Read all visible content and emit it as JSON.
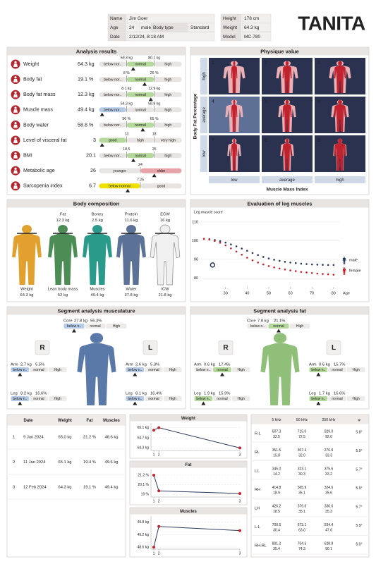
{
  "header": {
    "left_rows": [
      [
        "Name",
        "Jim Goer"
      ],
      [
        "Age",
        "24",
        "male",
        "Body type",
        "Standard"
      ],
      [
        "Date",
        "2/12/24, 8:18 AM"
      ]
    ],
    "right_rows": [
      [
        "Height",
        "178 cm"
      ],
      [
        "Weight",
        "64.3 kg"
      ],
      [
        "Model",
        "MC-780"
      ]
    ],
    "logo": "TANITA"
  },
  "analysis": {
    "title": "Analysis results",
    "rows": [
      {
        "name": "Weight",
        "value": 64.3,
        "unit": "kg",
        "ticks": [
          {
            "value": 59.3,
            "label": "59.3 kg"
          },
          {
            "value": 80.1,
            "label": "80.1 kg"
          }
        ],
        "segments": [
          "below nor..",
          "normal",
          "high"
        ],
        "active": 1,
        "active_color": "#b5d89c"
      },
      {
        "name": "Body fat",
        "value": 19.1,
        "unit": "%",
        "ticks": [
          {
            "value": 8,
            "label": "8 %"
          },
          {
            "value": 25,
            "label": "25 %"
          }
        ],
        "segments": [
          "below nor..",
          "normal",
          "high"
        ],
        "active": 1,
        "active_color": "#b5d89c"
      },
      {
        "name": "Body fat mass",
        "value": 12.3,
        "unit": "kg",
        "ticks": [
          {
            "value": 8.1,
            "label": "8.1 kg"
          },
          {
            "value": 12.9,
            "label": "12.9 kg"
          }
        ],
        "segments": [
          "below nor..",
          "normal",
          "high"
        ],
        "active": 1,
        "active_color": "#b5d89c"
      },
      {
        "name": "Muscle mass",
        "value": 49.4,
        "unit": "kg",
        "ticks": [
          {
            "value": 54.3,
            "label": "54.3 kg"
          },
          {
            "value": 58.8,
            "label": "58.8 kg"
          }
        ],
        "segments": [
          "below nor..",
          "normal",
          "high"
        ],
        "active": 0,
        "active_color": "#b6cbe6"
      },
      {
        "name": "Body water",
        "value": 58.8,
        "unit": "%",
        "ticks": [
          {
            "value": 50,
            "label": "50 %"
          },
          {
            "value": 65,
            "label": "65 %"
          }
        ],
        "segments": [
          "below nor..",
          "normal",
          "high"
        ],
        "active": 1,
        "active_color": "#b5d89c"
      },
      {
        "name": "Level of visceral fat",
        "value": 3,
        "ticks": [
          13,
          18
        ],
        "segments": [
          "good",
          "high",
          "very high"
        ],
        "active": 0,
        "active_color": "#b5d89c"
      },
      {
        "name": "BMI",
        "value": 20.1,
        "ticks": [
          18.5,
          25
        ],
        "segments": [
          "below nor..",
          "normal",
          "high"
        ],
        "active": 1,
        "active_color": "#b5d89c"
      },
      {
        "name": "Metabolic age",
        "value": 26,
        "ticks": [
          24
        ],
        "segments": [
          "younger",
          "older"
        ],
        "active": 1,
        "active_color": "#e6a3a8"
      },
      {
        "name": "Sarcopenia index",
        "value": 6.7,
        "ticks": [
          7.25
        ],
        "segments": [
          "below normal",
          "good"
        ],
        "active": 0,
        "active_color": "#f0e000"
      }
    ]
  },
  "physique": {
    "title": "Physique value",
    "y_label": "Body Fat Percentage",
    "y_levels": [
      "high",
      "average",
      "low"
    ],
    "x_label": "Muscle Mass Index",
    "x_levels": [
      "low",
      "average",
      "high"
    ],
    "cells": [
      1,
      2,
      3,
      4,
      5,
      6,
      7,
      8,
      9
    ],
    "selected_index": 3
  },
  "body_composition": {
    "title": "Body composition",
    "top": [
      {
        "name": "Fat",
        "value": "12.3 kg"
      },
      {
        "name": "Bones",
        "value": "2.5 kg"
      },
      {
        "name": "Protein",
        "value": "11.6 kg"
      },
      {
        "name": "ECW",
        "value": "16 kg"
      }
    ],
    "bottom": [
      {
        "name": "Weight",
        "value": "64.3 kg"
      },
      {
        "name": "Lean body mass",
        "value": "52 kg"
      },
      {
        "name": "Muscles",
        "value": "49.4 kg"
      },
      {
        "name": "Water",
        "value": "37.8 kg"
      },
      {
        "name": "ICW",
        "value": "21.8 kg"
      }
    ]
  },
  "leg_muscles": {
    "type": "scatter",
    "title": "Evaluation of leg muscles",
    "y_label": "Leg muscle score",
    "x_label": "Age",
    "xlim": [
      18,
      83
    ],
    "ylim": [
      76,
      113
    ],
    "xticks": [
      30,
      40,
      50,
      60,
      70,
      80
    ],
    "yticks": [
      80,
      90,
      100,
      110
    ],
    "series": [
      {
        "name": "male",
        "color": "#2b3a5a",
        "x": [
          20,
          22.5,
          25,
          27.5,
          30,
          32.5,
          35,
          37.5,
          40,
          42.5,
          45,
          47.5,
          50,
          52.5,
          55,
          57.5,
          60,
          62.5,
          65,
          67.5,
          70,
          72.5,
          75,
          77.5,
          80
        ],
        "values": [
          101,
          100.8,
          100.4,
          99.8,
          99,
          98,
          97,
          95.8,
          94.6,
          93.4,
          92.3,
          91.3,
          90.5,
          89.8,
          89.2,
          88.7,
          88.3,
          88,
          87.7,
          87.5,
          87.3,
          87.2,
          87.1,
          87,
          87
        ]
      },
      {
        "name": "female",
        "color": "#c0232e",
        "x": [
          20,
          22.5,
          25,
          27.5,
          30,
          32.5,
          35,
          37.5,
          40,
          42.5,
          45,
          47.5,
          50,
          52.5,
          55,
          57.5,
          60,
          62.5,
          65,
          67.5,
          70,
          72.5,
          75,
          77.5,
          80
        ],
        "values": [
          101,
          100.6,
          99.9,
          98.9,
          97.5,
          95.9,
          94.2,
          92.5,
          90.9,
          89.5,
          88.3,
          87.3,
          86.4,
          85.7,
          85.1,
          84.6,
          84.1,
          83.7,
          83.3,
          83,
          82.7,
          82.4,
          82.2,
          82,
          81.8
        ]
      }
    ],
    "point": {
      "x": 24,
      "value": 87,
      "color": "#2b3a5a"
    }
  },
  "segment_musculature": {
    "title": "Segment analysis musculature",
    "side_labels": [
      "R",
      "L"
    ],
    "segments": [
      "below n..",
      "normal",
      "High"
    ],
    "active_color": "#b6cbe6",
    "figure_color": "#5a78a8",
    "core": {
      "label": "Core",
      "mass": "27.8 kg",
      "pct": "56.3%",
      "active": 0
    },
    "parts": [
      {
        "label": "Arm",
        "mass": "2.7 kg",
        "pct": "5.5%",
        "active": 0
      },
      {
        "label": "Arm",
        "mass": "2.6 kg",
        "pct": "5.3%",
        "active": 0
      },
      {
        "label": "Leg",
        "mass": "8.2 kg",
        "pct": "16.6%",
        "active": 0
      },
      {
        "label": "Leg",
        "mass": "8.1 kg",
        "pct": "16.4%",
        "active": 0
      }
    ]
  },
  "segment_fat": {
    "title": "Segment analysis fat",
    "side_labels": [
      "R",
      "L"
    ],
    "segments": [
      "below n..",
      "normal",
      "High"
    ],
    "active_color": "#b5d89c",
    "figure_color": "#8fbf78",
    "core": {
      "label": "Core",
      "mass": "7.8 kg",
      "pct": "21.1%",
      "active": 1
    },
    "parts": [
      {
        "label": "Arm",
        "mass": "0.6 kg",
        "pct": "17.4%",
        "active": 1
      },
      {
        "label": "Arm",
        "mass": "0.6 kg",
        "pct": "15.7%",
        "active": 0
      },
      {
        "label": "Leg",
        "mass": "1.9 kg",
        "pct": "15.9%",
        "active": 0
      },
      {
        "label": "Leg",
        "mass": "1.7 kg",
        "pct": "16.6%",
        "active": 0
      }
    ]
  },
  "history": {
    "columns": [
      "Date",
      "Weight",
      "Fat",
      "Muscles"
    ],
    "rows": [
      [
        1,
        "9 Jan 2024",
        "65.0 kg",
        "21.2 %",
        "48.6 kg"
      ],
      [
        2,
        "11 Jan 2024",
        "65.1 kg",
        "19.4 %",
        "49.6 kg"
      ],
      [
        3,
        "12 Feb 2024",
        "64.3 kg",
        "19.1 %",
        "49.4 kg"
      ]
    ]
  },
  "trends": [
    {
      "type": "line",
      "title": "Weight",
      "x": [
        "9 Jan 2024",
        "11 Jan 2024",
        "12 Feb 2024"
      ],
      "values": [
        65.0,
        65.1,
        64.3
      ],
      "ylim": [
        64.2,
        65.2
      ],
      "yticks": [
        {
          "value": 65.1,
          "label": "65.1 kg"
        },
        {
          "value": 64.7,
          "label": "64.7 kg"
        },
        {
          "value": 64.3,
          "label": "64.3 kg"
        }
      ],
      "xticks": [
        {
          "value": "9 Jan 2024",
          "label": "1"
        },
        {
          "value": "11 Jan 2024",
          "label": "2"
        },
        {
          "value": "12 Feb 2024",
          "label": "3"
        }
      ]
    },
    {
      "type": "line",
      "title": "Fat",
      "x": [
        "9 Jan 2024",
        "11 Jan 2024",
        "12 Feb 2024"
      ],
      "values": [
        21.2,
        19.4,
        19.1
      ],
      "ylim": [
        18.7,
        21.6
      ],
      "yticks": [
        {
          "value": 21.2,
          "label": "21.2 %"
        },
        {
          "value": 20.1,
          "label": "20.1 %"
        },
        {
          "value": 19,
          "label": "19 %"
        }
      ],
      "xticks": [
        {
          "value": "9 Jan 2024",
          "label": "1"
        },
        {
          "value": "11 Jan 2024",
          "label": "2"
        },
        {
          "value": "12 Feb 2024",
          "label": "3"
        }
      ]
    },
    {
      "type": "line",
      "title": "Muscles",
      "x": [
        "9 Jan 2024",
        "11 Jan 2024",
        "12 Feb 2024"
      ],
      "values": [
        48.6,
        49.6,
        49.4
      ],
      "ylim": [
        48.5,
        50.0
      ],
      "yticks": [
        {
          "value": 49.8,
          "label": "49.8 kg"
        },
        {
          "value": 49.2,
          "label": "49.2 kg"
        },
        {
          "value": 48.6,
          "label": "48.6 kg"
        }
      ],
      "xticks": [
        {
          "value": "9 Jan 2024",
          "label": "1"
        },
        {
          "value": "11 Jan 2024",
          "label": "2"
        },
        {
          "value": "12 Feb 2024",
          "label": "3"
        }
      ]
    }
  ],
  "impedance": {
    "columns": [
      "5 kHz",
      "50 kHz",
      "250 kHz",
      "φ"
    ],
    "rows": [
      [
        "R-L",
        "607.3",
        "32.5",
        "715.0",
        "72.5",
        "929.0",
        "92.0",
        "5.8°"
      ],
      [
        "RL",
        "351.5",
        "15.8",
        "307.4",
        "32.0",
        "276.9",
        "33.3",
        "5.9°"
      ],
      [
        "LL",
        "345.0",
        "14.2",
        "323.1",
        "30.3",
        "375.6",
        "33.2",
        "5.7°"
      ],
      [
        "RH",
        "414.8",
        "18.9",
        "365.9",
        "35.1",
        "324.6",
        "35.6",
        "5.9°"
      ],
      [
        "LH",
        "426.2",
        "18.5",
        "376.6",
        "35.1",
        "336.6",
        "35.3",
        "5.7°"
      ],
      [
        "L-L",
        "700.5",
        "30.4",
        "673.1",
        "63.0",
        "534.4",
        "47.6",
        "5.9°"
      ],
      [
        "RH-RL",
        "801.2",
        "35.4",
        "704.3",
        "74.2",
        "628.8",
        "90.1",
        "6.0°"
      ]
    ]
  }
}
